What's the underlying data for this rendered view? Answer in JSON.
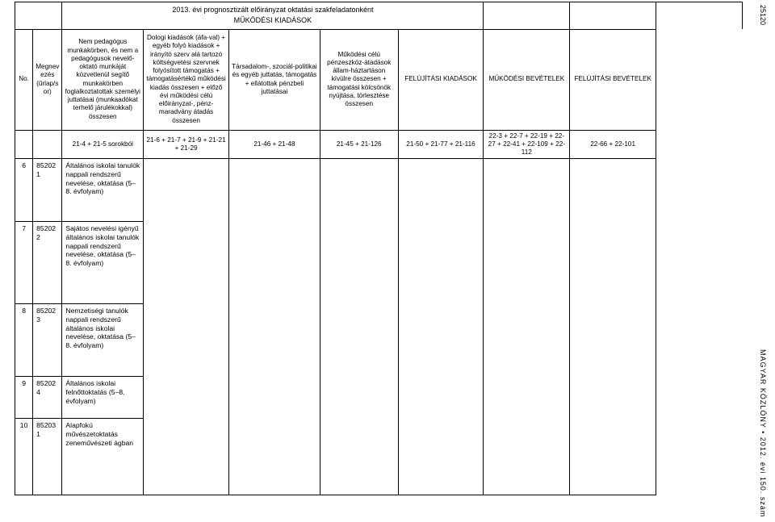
{
  "colors": {
    "bg": "#ffffff",
    "text": "#000000",
    "border": "#000000"
  },
  "side": {
    "pageNum": "25120",
    "footer": "MAGYAR KÖZLÖNY • 2012. évi 150. szám"
  },
  "title": "2013. évi prognosztizált előirányzat oktatási szakfeladatonként",
  "subtitle": "MŰKÖDÉSI KIADÁSOK",
  "header": {
    "col1": "No.",
    "col2": "Megnevezés (űrlap/sor)",
    "col3": "Nem pedagógus munkakörben, és nem a pedagógusok nevelő-oktató munkáját közvetlenül segítő munkakörben foglalkoztatottak személyi juttatásai (munkaadókat terhelő járulékokkal) összesen",
    "col4": "Dologi kiadások (áfa-val) + egyéb folyó kiadások + irányító szerv alá tartozó költségvetési szervnek folyósított támogatás + támogatásértékű működési kiadás összesen + előző évi működési célú előirányzat-, pénz-maradvány átadás összesen",
    "col5": "Társadalom-, szociál-politikai és egyéb juttatás, támogatás + ellátottak pénzbeli juttatásai",
    "col6": "Működési célú pénzeszköz-átadások állam-háztartáson kívülre összesen + támogatási kölcsönök nyújtása, törlesztése összesen",
    "col7": "FELÚJÍTÁSI KIADÁSOK",
    "col8": "MŰKÖDÉSI BEVÉTELEK",
    "col9": "FELÚJÍTÁSI BEVÉTELEK"
  },
  "formula": {
    "c3": "21-4 + 21-5 sorokból",
    "c4": "21-6 + 21-7 + 21-9 + 21-21 + 21-29",
    "c5": "21-46 + 21-48",
    "c6": "21-45 + 21-126",
    "c7": "21-50 + 21-77 + 21-116",
    "c8": "22-3 + 22-7 + 22-19 + 22-27 + 22-41 + 22-109 + 22-112",
    "c9": "22-66 + 22-101"
  },
  "rows": [
    {
      "n": "6",
      "code": "852021",
      "name": "Általános iskolai tanulók nappali rendszerű nevelése, oktatása (5–8. évfolyam)"
    },
    {
      "n": "7",
      "code": "852022",
      "name": "Sajátos nevelési igényű általános iskolai tanulók nappali rendszerű nevelése, oktatása (5–8. évfolyam)"
    },
    {
      "n": "8",
      "code": "852023",
      "name": "Nemzetiségi tanulók nappali rendszerű általános iskolai nevelése, oktatása (5–8. évfolyam)"
    },
    {
      "n": "9",
      "code": "852024",
      "name": "Általános iskolai felnőttoktatás (5–8. évfolyam)"
    },
    {
      "n": "10",
      "code": "852031",
      "name": "Alapfokú művészetoktatás zeneművészeti ágban"
    }
  ]
}
